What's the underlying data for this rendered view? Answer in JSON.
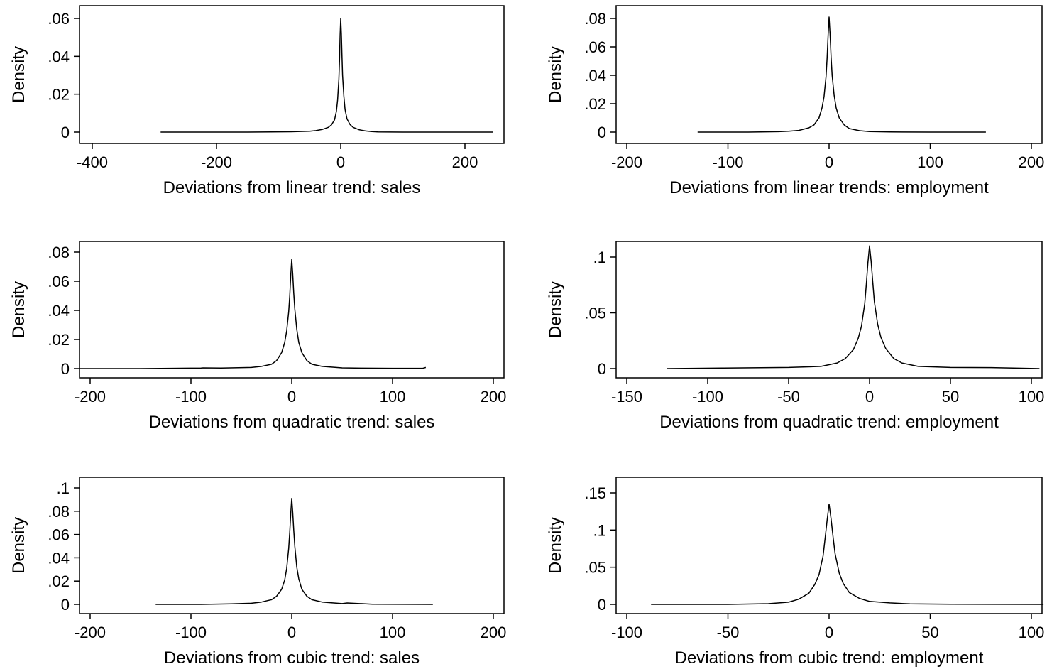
{
  "chart_data": [
    {
      "type": "line",
      "xlabel": "Deviations from linear trend: sales",
      "ylabel": "Density",
      "xlim": [
        -400,
        200
      ],
      "ylim": [
        0,
        0.06
      ],
      "xticks": [
        -400,
        -200,
        0,
        200
      ],
      "xtick_labels": [
        "-400",
        "-200",
        "0",
        "200"
      ],
      "yticks": [
        0,
        0.02,
        0.04,
        0.06
      ],
      "ytick_labels": [
        "0",
        ".02",
        ".04",
        ".06"
      ],
      "grid": false,
      "series": [
        {
          "x": [
            -290,
            -150,
            -80,
            -50,
            -40,
            -30,
            -20,
            -15,
            -10,
            -7,
            -5,
            -3,
            -2,
            -1,
            0,
            1,
            2,
            3,
            5,
            7,
            10,
            15,
            20,
            30,
            40,
            50,
            60,
            100,
            150,
            245
          ],
          "y": [
            0,
            0,
            0.0002,
            0.0005,
            0.0008,
            0.0014,
            0.0025,
            0.0038,
            0.0065,
            0.011,
            0.017,
            0.028,
            0.038,
            0.051,
            0.06,
            0.052,
            0.04,
            0.03,
            0.019,
            0.012,
            0.007,
            0.004,
            0.0025,
            0.0012,
            0.0006,
            0.0003,
            0.0001,
            0,
            0,
            0
          ]
        }
      ]
    },
    {
      "type": "line",
      "xlabel": "Deviations from linear trends: employment",
      "ylabel": "Density",
      "xlim": [
        -200,
        200
      ],
      "ylim": [
        0,
        0.08
      ],
      "xticks": [
        -200,
        -100,
        0,
        100,
        200
      ],
      "xtick_labels": [
        "-200",
        "-100",
        "0",
        "100",
        "200"
      ],
      "yticks": [
        0,
        0.02,
        0.04,
        0.06,
        0.08
      ],
      "ytick_labels": [
        "0",
        ".02",
        ".04",
        ".06",
        ".08"
      ],
      "grid": false,
      "series": [
        {
          "x": [
            -130,
            -80,
            -50,
            -40,
            -30,
            -20,
            -15,
            -10,
            -7,
            -5,
            -3,
            -2,
            -1,
            0,
            1,
            2,
            3,
            5,
            7,
            10,
            15,
            20,
            30,
            40,
            60,
            100,
            155
          ],
          "y": [
            0,
            0,
            0.0003,
            0.0006,
            0.0012,
            0.003,
            0.005,
            0.01,
            0.017,
            0.025,
            0.039,
            0.052,
            0.068,
            0.081,
            0.069,
            0.053,
            0.04,
            0.026,
            0.017,
            0.01,
            0.005,
            0.0025,
            0.001,
            0.0004,
            0.0001,
            0,
            0
          ]
        }
      ]
    },
    {
      "type": "line",
      "xlabel": "Deviations from quadratic trend: sales",
      "ylabel": "Density",
      "xlim": [
        -200,
        200
      ],
      "ylim": [
        0,
        0.08
      ],
      "xticks": [
        -200,
        -100,
        0,
        100,
        200
      ],
      "xtick_labels": [
        "-200",
        "-100",
        "0",
        "100",
        "200"
      ],
      "yticks": [
        0,
        0.02,
        0.04,
        0.06,
        0.08
      ],
      "ytick_labels": [
        "0",
        ".02",
        ".04",
        ".06",
        ".08"
      ],
      "grid": false,
      "series": [
        {
          "x": [
            -210,
            -150,
            -90,
            -88,
            -70,
            -40,
            -30,
            -20,
            -15,
            -10,
            -7,
            -5,
            -3,
            -2,
            -1,
            0,
            1,
            2,
            3,
            5,
            7,
            10,
            15,
            20,
            30,
            50,
            70,
            100,
            130,
            133
          ],
          "y": [
            0,
            0,
            0.0004,
            0.0005,
            0.0004,
            0.0008,
            0.0015,
            0.003,
            0.0055,
            0.011,
            0.018,
            0.026,
            0.039,
            0.05,
            0.064,
            0.075,
            0.065,
            0.052,
            0.041,
            0.027,
            0.018,
            0.011,
            0.0055,
            0.003,
            0.0015,
            0.0005,
            0.0003,
            0.0002,
            0.0002,
            0.0008
          ]
        }
      ]
    },
    {
      "type": "line",
      "xlabel": "Deviations from quadratic trend: employment",
      "ylabel": "Density",
      "xlim": [
        -150,
        100
      ],
      "ylim": [
        0,
        0.1
      ],
      "xticks": [
        -150,
        -100,
        -50,
        0,
        50,
        100
      ],
      "xtick_labels": [
        "-150",
        "-100",
        "-50",
        "0",
        "50",
        "100"
      ],
      "yticks": [
        0,
        0.05,
        0.1
      ],
      "ytick_labels": [
        "0",
        ".05",
        ".1"
      ],
      "grid": false,
      "series": [
        {
          "x": [
            -125,
            -90,
            -50,
            -30,
            -20,
            -15,
            -10,
            -7,
            -5,
            -3,
            -2,
            -1,
            0,
            1,
            2,
            3,
            5,
            7,
            10,
            15,
            20,
            30,
            50,
            78,
            105
          ],
          "y": [
            0,
            0.0005,
            0.001,
            0.002,
            0.005,
            0.009,
            0.017,
            0.027,
            0.038,
            0.058,
            0.075,
            0.095,
            0.11,
            0.096,
            0.077,
            0.06,
            0.04,
            0.028,
            0.018,
            0.009,
            0.005,
            0.002,
            0.001,
            0.0008,
            0
          ]
        }
      ]
    },
    {
      "type": "line",
      "xlabel": "Deviations from cubic trend: sales",
      "ylabel": "Density",
      "xlim": [
        -200,
        200
      ],
      "ylim": [
        0,
        0.1
      ],
      "xticks": [
        -200,
        -100,
        0,
        100,
        200
      ],
      "xtick_labels": [
        "-200",
        "-100",
        "0",
        "100",
        "200"
      ],
      "yticks": [
        0,
        0.02,
        0.04,
        0.06,
        0.08,
        0.1
      ],
      "ytick_labels": [
        "0",
        ".02",
        ".04",
        ".06",
        ".08",
        ".1"
      ],
      "grid": false,
      "series": [
        {
          "x": [
            -135,
            -90,
            -60,
            -40,
            -30,
            -20,
            -15,
            -10,
            -7,
            -5,
            -3,
            -2,
            -1,
            0,
            1,
            2,
            3,
            5,
            7,
            10,
            15,
            20,
            30,
            50,
            55,
            80,
            140
          ],
          "y": [
            0,
            0,
            0.0005,
            0.001,
            0.002,
            0.004,
            0.007,
            0.013,
            0.021,
            0.031,
            0.048,
            0.062,
            0.078,
            0.091,
            0.079,
            0.064,
            0.05,
            0.032,
            0.022,
            0.013,
            0.007,
            0.004,
            0.002,
            0.0007,
            0.0012,
            0.0002,
            0
          ]
        }
      ]
    },
    {
      "type": "line",
      "xlabel": "Deviations from cubic trend: employment",
      "ylabel": "Density",
      "xlim": [
        -100,
        100
      ],
      "ylim": [
        0,
        0.15
      ],
      "xticks": [
        -100,
        -50,
        0,
        50,
        100
      ],
      "xtick_labels": [
        "-100",
        "-50",
        "0",
        "50",
        "100"
      ],
      "yticks": [
        0,
        0.05,
        0.1,
        0.15
      ],
      "ytick_labels": [
        "0",
        ".05",
        ".1",
        ".15"
      ],
      "grid": false,
      "series": [
        {
          "x": [
            -88,
            -50,
            -30,
            -20,
            -15,
            -10,
            -7,
            -5,
            -3,
            -2,
            -1,
            0,
            1,
            2,
            3,
            5,
            7,
            10,
            15,
            20,
            30,
            40,
            60,
            106
          ],
          "y": [
            0,
            0,
            0.001,
            0.003,
            0.007,
            0.015,
            0.027,
            0.04,
            0.065,
            0.088,
            0.113,
            0.135,
            0.115,
            0.09,
            0.068,
            0.042,
            0.028,
            0.016,
            0.008,
            0.004,
            0.002,
            0.0007,
            0.0002,
            0
          ]
        }
      ]
    }
  ]
}
